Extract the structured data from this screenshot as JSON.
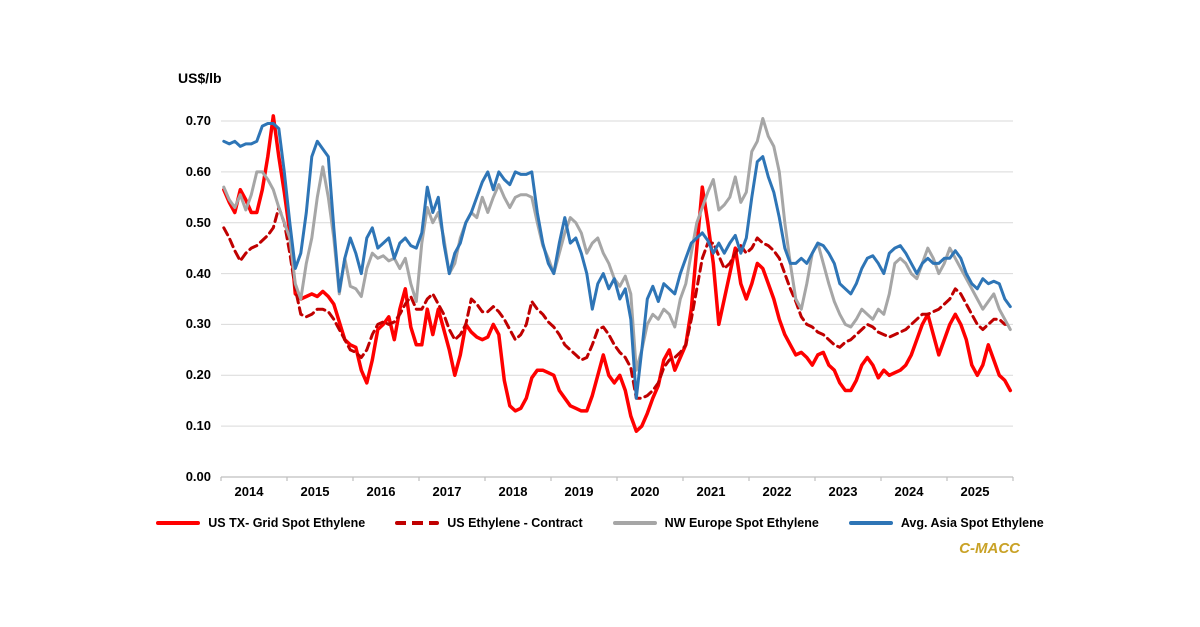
{
  "watermark": "C-MACC",
  "colors": {
    "us_spot_red": "#FF0000",
    "us_contract_dark_red": "#C00000",
    "nw_europe_gray": "#A6A6A6",
    "asia_blue": "#2E75B6",
    "gridline": "#D9D9D9",
    "axis_line": "#BFBFBF",
    "watermark_gold": "#C9A227",
    "text": "#000000"
  },
  "chart_data": {
    "type": "line",
    "axis_title": "US$/lb",
    "xlabel": "",
    "ylabel": "US$/lb",
    "ylim": [
      0,
      0.7
    ],
    "grid": true,
    "legend_position": "bottom",
    "x_frequency": "monthly",
    "x_range": "Jan 2014 - Dec 2025",
    "y_tick_labels": [
      "0.00",
      "0.10",
      "0.20",
      "0.30",
      "0.40",
      "0.50",
      "0.60",
      "0.70"
    ],
    "x_tick_labels": [
      "2014",
      "2015",
      "2016",
      "2017",
      "2018",
      "2019",
      "2020",
      "2021",
      "2022",
      "2023",
      "2024",
      "2025"
    ],
    "series": [
      {
        "id": "us-tx-grid-spot",
        "name": "US TX- Grid Spot Ethylene",
        "color": "#FF0000",
        "dash": "solid",
        "values": [
          0.565,
          0.54,
          0.52,
          0.565,
          0.545,
          0.52,
          0.52,
          0.565,
          0.63,
          0.71,
          0.63,
          0.56,
          0.48,
          0.36,
          0.35,
          0.355,
          0.36,
          0.355,
          0.365,
          0.355,
          0.34,
          0.305,
          0.27,
          0.26,
          0.255,
          0.21,
          0.185,
          0.23,
          0.29,
          0.3,
          0.315,
          0.27,
          0.33,
          0.37,
          0.295,
          0.26,
          0.26,
          0.33,
          0.28,
          0.33,
          0.29,
          0.25,
          0.2,
          0.24,
          0.3,
          0.285,
          0.275,
          0.27,
          0.275,
          0.3,
          0.28,
          0.19,
          0.14,
          0.13,
          0.135,
          0.155,
          0.195,
          0.21,
          0.21,
          0.205,
          0.2,
          0.17,
          0.155,
          0.14,
          0.135,
          0.13,
          0.13,
          0.16,
          0.2,
          0.24,
          0.2,
          0.185,
          0.2,
          0.17,
          0.12,
          0.09,
          0.1,
          0.125,
          0.155,
          0.18,
          0.23,
          0.25,
          0.21,
          0.235,
          0.26,
          0.33,
          0.45,
          0.57,
          0.5,
          0.42,
          0.3,
          0.35,
          0.4,
          0.45,
          0.38,
          0.35,
          0.38,
          0.42,
          0.41,
          0.38,
          0.35,
          0.31,
          0.28,
          0.26,
          0.24,
          0.245,
          0.235,
          0.22,
          0.24,
          0.245,
          0.22,
          0.21,
          0.185,
          0.17,
          0.17,
          0.19,
          0.22,
          0.235,
          0.22,
          0.195,
          0.21,
          0.2,
          0.205,
          0.21,
          0.22,
          0.24,
          0.27,
          0.3,
          0.32,
          0.28,
          0.24,
          0.27,
          0.3,
          0.32,
          0.3,
          0.27,
          0.22,
          0.2,
          0.22,
          0.26,
          0.23,
          0.2,
          0.19,
          0.17
        ]
      },
      {
        "id": "us-contract",
        "name": "US Ethylene - Contract",
        "color": "#C00000",
        "dash": "dashed",
        "values": [
          0.49,
          0.47,
          0.445,
          0.425,
          0.44,
          0.45,
          0.455,
          0.465,
          0.475,
          0.49,
          0.53,
          0.5,
          0.44,
          0.37,
          0.32,
          0.315,
          0.32,
          0.33,
          0.33,
          0.325,
          0.31,
          0.29,
          0.27,
          0.25,
          0.245,
          0.235,
          0.25,
          0.28,
          0.3,
          0.305,
          0.3,
          0.305,
          0.32,
          0.34,
          0.355,
          0.33,
          0.33,
          0.35,
          0.36,
          0.34,
          0.32,
          0.29,
          0.27,
          0.28,
          0.3,
          0.35,
          0.34,
          0.325,
          0.325,
          0.335,
          0.325,
          0.31,
          0.29,
          0.27,
          0.28,
          0.3,
          0.345,
          0.33,
          0.32,
          0.305,
          0.295,
          0.28,
          0.26,
          0.25,
          0.24,
          0.23,
          0.235,
          0.26,
          0.29,
          0.295,
          0.28,
          0.26,
          0.245,
          0.235,
          0.215,
          0.155,
          0.155,
          0.16,
          0.17,
          0.185,
          0.215,
          0.23,
          0.235,
          0.245,
          0.26,
          0.31,
          0.37,
          0.43,
          0.46,
          0.46,
          0.435,
          0.41,
          0.42,
          0.44,
          0.455,
          0.44,
          0.45,
          0.47,
          0.46,
          0.455,
          0.445,
          0.43,
          0.4,
          0.37,
          0.345,
          0.315,
          0.3,
          0.295,
          0.285,
          0.28,
          0.27,
          0.26,
          0.255,
          0.265,
          0.27,
          0.28,
          0.29,
          0.3,
          0.295,
          0.285,
          0.28,
          0.275,
          0.28,
          0.285,
          0.29,
          0.3,
          0.31,
          0.32,
          0.32,
          0.325,
          0.33,
          0.34,
          0.35,
          0.37,
          0.36,
          0.34,
          0.32,
          0.3,
          0.29,
          0.3,
          0.31,
          0.31,
          0.3,
          0.3
        ]
      },
      {
        "id": "nw-europe-spot",
        "name": "NW Europe Spot Ethylene",
        "color": "#A6A6A6",
        "dash": "solid",
        "values": [
          0.57,
          0.545,
          0.53,
          0.555,
          0.525,
          0.555,
          0.6,
          0.6,
          0.585,
          0.565,
          0.53,
          0.5,
          0.47,
          0.38,
          0.35,
          0.42,
          0.47,
          0.55,
          0.61,
          0.55,
          0.47,
          0.36,
          0.43,
          0.375,
          0.37,
          0.355,
          0.41,
          0.44,
          0.43,
          0.435,
          0.425,
          0.43,
          0.41,
          0.43,
          0.38,
          0.345,
          0.46,
          0.53,
          0.5,
          0.52,
          0.47,
          0.4,
          0.42,
          0.47,
          0.5,
          0.52,
          0.51,
          0.55,
          0.52,
          0.55,
          0.575,
          0.55,
          0.53,
          0.55,
          0.555,
          0.555,
          0.55,
          0.5,
          0.455,
          0.43,
          0.4,
          0.44,
          0.48,
          0.51,
          0.5,
          0.48,
          0.44,
          0.46,
          0.47,
          0.44,
          0.42,
          0.39,
          0.375,
          0.395,
          0.36,
          0.21,
          0.25,
          0.3,
          0.32,
          0.31,
          0.33,
          0.32,
          0.295,
          0.35,
          0.38,
          0.44,
          0.5,
          0.53,
          0.56,
          0.585,
          0.525,
          0.535,
          0.55,
          0.59,
          0.54,
          0.56,
          0.64,
          0.66,
          0.705,
          0.67,
          0.65,
          0.6,
          0.5,
          0.42,
          0.35,
          0.33,
          0.38,
          0.44,
          0.46,
          0.42,
          0.38,
          0.345,
          0.32,
          0.3,
          0.295,
          0.31,
          0.33,
          0.32,
          0.31,
          0.33,
          0.32,
          0.36,
          0.42,
          0.43,
          0.42,
          0.4,
          0.39,
          0.42,
          0.45,
          0.43,
          0.4,
          0.42,
          0.45,
          0.43,
          0.41,
          0.39,
          0.37,
          0.35,
          0.33,
          0.345,
          0.36,
          0.33,
          0.31,
          0.29
        ]
      },
      {
        "id": "asia-spot",
        "name": "Avg. Asia Spot Ethylene",
        "color": "#2E75B6",
        "dash": "solid",
        "values": [
          0.66,
          0.655,
          0.66,
          0.65,
          0.655,
          0.655,
          0.66,
          0.69,
          0.695,
          0.695,
          0.685,
          0.6,
          0.5,
          0.41,
          0.44,
          0.52,
          0.63,
          0.66,
          0.645,
          0.63,
          0.49,
          0.365,
          0.43,
          0.47,
          0.44,
          0.4,
          0.47,
          0.49,
          0.45,
          0.46,
          0.47,
          0.43,
          0.46,
          0.47,
          0.455,
          0.45,
          0.48,
          0.57,
          0.52,
          0.55,
          0.46,
          0.4,
          0.44,
          0.46,
          0.5,
          0.52,
          0.55,
          0.58,
          0.6,
          0.565,
          0.6,
          0.585,
          0.575,
          0.6,
          0.595,
          0.595,
          0.6,
          0.52,
          0.46,
          0.42,
          0.4,
          0.46,
          0.51,
          0.46,
          0.47,
          0.44,
          0.4,
          0.33,
          0.38,
          0.4,
          0.37,
          0.39,
          0.35,
          0.37,
          0.31,
          0.155,
          0.25,
          0.35,
          0.375,
          0.345,
          0.38,
          0.37,
          0.36,
          0.4,
          0.43,
          0.46,
          0.47,
          0.48,
          0.465,
          0.44,
          0.46,
          0.44,
          0.46,
          0.475,
          0.44,
          0.47,
          0.55,
          0.62,
          0.63,
          0.59,
          0.56,
          0.51,
          0.45,
          0.42,
          0.42,
          0.43,
          0.42,
          0.44,
          0.46,
          0.455,
          0.44,
          0.42,
          0.38,
          0.37,
          0.36,
          0.38,
          0.41,
          0.43,
          0.435,
          0.42,
          0.4,
          0.44,
          0.45,
          0.455,
          0.44,
          0.42,
          0.4,
          0.42,
          0.43,
          0.42,
          0.42,
          0.43,
          0.43,
          0.445,
          0.43,
          0.4,
          0.38,
          0.37,
          0.39,
          0.38,
          0.385,
          0.38,
          0.35,
          0.335
        ]
      }
    ]
  }
}
